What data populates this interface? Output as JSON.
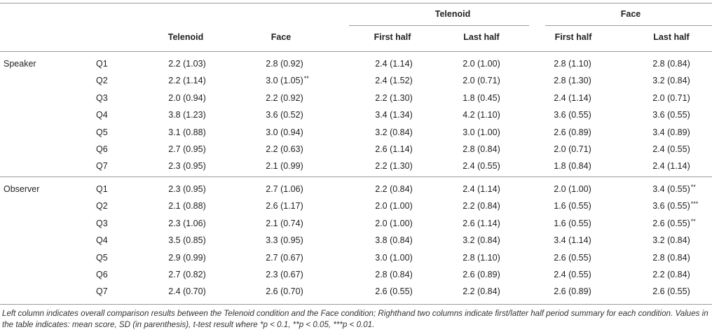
{
  "table": {
    "group_headers": [
      "Telenoid",
      "Face"
    ],
    "column_headers": [
      "Telenoid",
      "Face",
      "First half",
      "Last half",
      "First half",
      "Last half"
    ],
    "sections": [
      {
        "label": "Speaker",
        "rows": [
          {
            "q": "Q1",
            "cells": [
              [
                "2.2 (1.03)",
                ""
              ],
              [
                "2.8 (0.92)",
                ""
              ],
              [
                "2.4 (1.14)",
                ""
              ],
              [
                "2.0 (1.00)",
                ""
              ],
              [
                "2.8 (1.10)",
                ""
              ],
              [
                "2.8 (0.84)",
                ""
              ]
            ]
          },
          {
            "q": "Q2",
            "cells": [
              [
                "2.2 (1.14)",
                ""
              ],
              [
                "3.0 (1.05)",
                "**"
              ],
              [
                "2.4 (1.52)",
                ""
              ],
              [
                "2.0 (0.71)",
                ""
              ],
              [
                "2.8 (1.30)",
                ""
              ],
              [
                "3.2 (0.84)",
                ""
              ]
            ]
          },
          {
            "q": "Q3",
            "cells": [
              [
                "2.0 (0.94)",
                ""
              ],
              [
                "2.2 (0.92)",
                ""
              ],
              [
                "2.2 (1.30)",
                ""
              ],
              [
                "1.8 (0.45)",
                ""
              ],
              [
                "2.4 (1.14)",
                ""
              ],
              [
                "2.0 (0.71)",
                ""
              ]
            ]
          },
          {
            "q": "Q4",
            "cells": [
              [
                "3.8 (1.23)",
                ""
              ],
              [
                "3.6 (0.52)",
                ""
              ],
              [
                "3.4 (1.34)",
                ""
              ],
              [
                "4.2 (1.10)",
                ""
              ],
              [
                "3.6 (0.55)",
                ""
              ],
              [
                "3.6 (0.55)",
                ""
              ]
            ]
          },
          {
            "q": "Q5",
            "cells": [
              [
                "3.1 (0.88)",
                ""
              ],
              [
                "3.0 (0.94)",
                ""
              ],
              [
                "3.2 (0.84)",
                ""
              ],
              [
                "3.0 (1.00)",
                ""
              ],
              [
                "2.6 (0.89)",
                ""
              ],
              [
                "3.4 (0.89)",
                ""
              ]
            ]
          },
          {
            "q": "Q6",
            "cells": [
              [
                "2.7 (0.95)",
                ""
              ],
              [
                "2.2 (0.63)",
                ""
              ],
              [
                "2.6 (1.14)",
                ""
              ],
              [
                "2.8 (0.84)",
                ""
              ],
              [
                "2.0 (0.71)",
                ""
              ],
              [
                "2.4 (0.55)",
                ""
              ]
            ]
          },
          {
            "q": "Q7",
            "cells": [
              [
                "2.3 (0.95)",
                ""
              ],
              [
                "2.1 (0.99)",
                ""
              ],
              [
                "2.2 (1.30)",
                ""
              ],
              [
                "2.4 (0.55)",
                ""
              ],
              [
                "1.8 (0.84)",
                ""
              ],
              [
                "2.4 (1.14)",
                ""
              ]
            ]
          }
        ]
      },
      {
        "label": "Observer",
        "rows": [
          {
            "q": "Q1",
            "cells": [
              [
                "2.3 (0.95)",
                ""
              ],
              [
                "2.7 (1.06)",
                ""
              ],
              [
                "2.2 (0.84)",
                ""
              ],
              [
                "2.4 (1.14)",
                ""
              ],
              [
                "2.0 (1.00)",
                ""
              ],
              [
                "3.4 (0.55)",
                "**"
              ]
            ]
          },
          {
            "q": "Q2",
            "cells": [
              [
                "2.1 (0.88)",
                ""
              ],
              [
                "2.6 (1.17)",
                ""
              ],
              [
                "2.0 (1.00)",
                ""
              ],
              [
                "2.2 (0.84)",
                ""
              ],
              [
                "1.6 (0.55)",
                ""
              ],
              [
                "3.6 (0.55)",
                "***"
              ]
            ]
          },
          {
            "q": "Q3",
            "cells": [
              [
                "2.3 (1.06)",
                ""
              ],
              [
                "2.1 (0.74)",
                ""
              ],
              [
                "2.0 (1.00)",
                ""
              ],
              [
                "2.6 (1.14)",
                ""
              ],
              [
                "1.6 (0.55)",
                ""
              ],
              [
                "2.6 (0.55)",
                "**"
              ]
            ]
          },
          {
            "q": "Q4",
            "cells": [
              [
                "3.5 (0.85)",
                ""
              ],
              [
                "3.3 (0.95)",
                ""
              ],
              [
                "3.8 (0.84)",
                ""
              ],
              [
                "3.2 (0.84)",
                ""
              ],
              [
                "3.4 (1.14)",
                ""
              ],
              [
                "3.2 (0.84)",
                ""
              ]
            ]
          },
          {
            "q": "Q5",
            "cells": [
              [
                "2.9 (0.99)",
                ""
              ],
              [
                "2.7 (0.67)",
                ""
              ],
              [
                "3.0 (1.00)",
                ""
              ],
              [
                "2.8 (1.10)",
                ""
              ],
              [
                "2.6 (0.55)",
                ""
              ],
              [
                "2.8 (0.84)",
                ""
              ]
            ]
          },
          {
            "q": "Q6",
            "cells": [
              [
                "2.7 (0.82)",
                ""
              ],
              [
                "2.3 (0.67)",
                ""
              ],
              [
                "2.8 (0.84)",
                ""
              ],
              [
                "2.6 (0.89)",
                ""
              ],
              [
                "2.4 (0.55)",
                ""
              ],
              [
                "2.2 (0.84)",
                ""
              ]
            ]
          },
          {
            "q": "Q7",
            "cells": [
              [
                "2.4 (0.70)",
                ""
              ],
              [
                "2.6 (0.70)",
                ""
              ],
              [
                "2.6 (0.55)",
                ""
              ],
              [
                "2.2 (0.84)",
                ""
              ],
              [
                "2.6 (0.89)",
                ""
              ],
              [
                "2.6 (0.55)",
                ""
              ]
            ]
          }
        ]
      }
    ]
  },
  "caption": "Left column indicates overall comparison results between the Telenoid condition and the Face condition; Righthand two columns indicate first/latter half period summary for each condition. Values in the table indicates: mean score, SD (in parenthesis), t-test result where *p < 0.1, **p < 0.05, ***p < 0.01."
}
